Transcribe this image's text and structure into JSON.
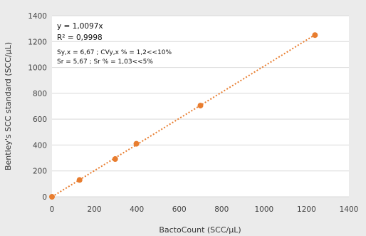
{
  "chart_data": {
    "type": "scatter",
    "title": "",
    "xlabel": "BactoCount (SCC/µL)",
    "ylabel": "Bentley's SCC standard (SCC/µL)",
    "xlim": [
      0,
      1400
    ],
    "ylim": [
      0,
      1400
    ],
    "x_ticks": [
      "0",
      "200",
      "400",
      "600",
      "800",
      "1000",
      "1200",
      "1400"
    ],
    "y_ticks": [
      "0",
      "200",
      "400",
      "600",
      "800",
      "1000",
      "1200",
      "1400"
    ],
    "grid": "horizontal",
    "series": [
      {
        "points": [
          {
            "x": 0,
            "y": 0
          },
          {
            "x": 130,
            "y": 130
          },
          {
            "x": 298,
            "y": 292
          },
          {
            "x": 398,
            "y": 410
          },
          {
            "x": 700,
            "y": 705
          },
          {
            "x": 1240,
            "y": 1250
          }
        ],
        "color": "#e87d2f"
      }
    ],
    "trendline": {
      "slope": 1.0097,
      "intercept": 0,
      "x_range": [
        0,
        1240
      ],
      "style": "dotted",
      "color": "#e87d2f"
    },
    "annotations": {
      "equation": "y = 1,0097x",
      "r2": "R² = 0,9998",
      "line1": "Sy,x = 6,67 ; CVy,x % = 1,2<<10%",
      "line2": "Sr = 5,67 ; Sr % = 1,03<<5%"
    }
  }
}
